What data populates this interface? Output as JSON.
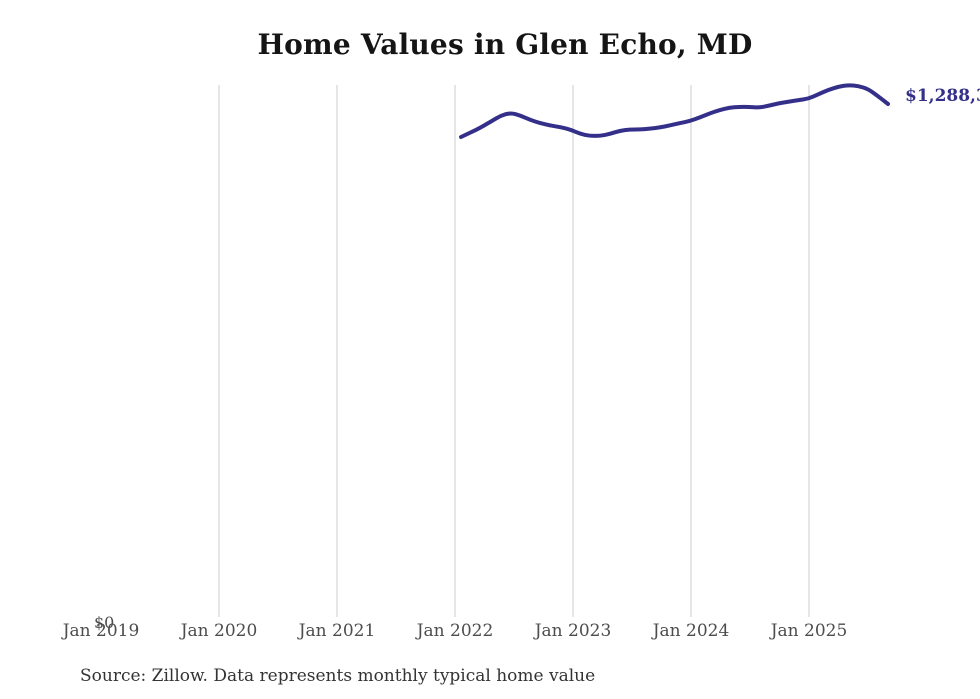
{
  "title": "Home Values in Glen Echo, MD",
  "source_note": "Source: Zillow. Data represents monthly typical home value",
  "latest_value_label": "$1,288,3",
  "y_axis": {
    "zero_label": "$0"
  },
  "x_axis": {
    "ticks": [
      {
        "label": "Jan 2019",
        "gridline": false
      },
      {
        "label": "Jan 2020",
        "gridline": true
      },
      {
        "label": "Jan 2021",
        "gridline": true
      },
      {
        "label": "Jan 2022",
        "gridline": true
      },
      {
        "label": "Jan 2023",
        "gridline": true
      },
      {
        "label": "Jan 2024",
        "gridline": true
      },
      {
        "label": "Jan 2025",
        "gridline": true
      }
    ]
  },
  "colors": {
    "line": "#34308a",
    "annotation": "#34308a",
    "grid": "#cccccc",
    "axis_text": "#4d4d4d",
    "title_text": "#151515",
    "source_text": "#333333",
    "background": "#ffffff"
  },
  "chart_data": {
    "type": "line",
    "title": "Home Values in Glen Echo, MD",
    "xlabel": "",
    "ylabel": "",
    "ylim": [
      0,
      1340000
    ],
    "grid": "vertical-only",
    "legend": "none",
    "series_name": "Monthly typical home value (ZHVI)",
    "end_value": 1288300,
    "x": [
      "Feb 2022",
      "Mar 2022",
      "Apr 2022",
      "May 2022",
      "Jun 2022",
      "Jul 2022",
      "Aug 2022",
      "Sep 2022",
      "Oct 2022",
      "Nov 2022",
      "Dec 2022",
      "Jan 2023",
      "Feb 2023",
      "Mar 2023",
      "Apr 2023",
      "May 2023",
      "Jun 2023",
      "Jul 2023",
      "Aug 2023",
      "Sep 2023",
      "Oct 2023",
      "Nov 2023",
      "Dec 2023",
      "Jan 2024",
      "Feb 2024",
      "Mar 2024",
      "Apr 2024",
      "May 2024",
      "Jun 2024",
      "Jul 2024",
      "Aug 2024",
      "Sep 2024",
      "Oct 2024",
      "Nov 2024",
      "Dec 2024",
      "Jan 2025",
      "Feb 2025",
      "Mar 2025",
      "Apr 2025",
      "May 2025",
      "Jun 2025",
      "Jul 2025",
      "Aug 2025",
      "Sep 2025"
    ],
    "values": [
      1205000,
      1217000,
      1229000,
      1244000,
      1259000,
      1266000,
      1259000,
      1248000,
      1240000,
      1234000,
      1230000,
      1224000,
      1213000,
      1208000,
      1208000,
      1213000,
      1221000,
      1224000,
      1224000,
      1226000,
      1229000,
      1234000,
      1240000,
      1245000,
      1254000,
      1264000,
      1273000,
      1279000,
      1281000,
      1281000,
      1279000,
      1284000,
      1290000,
      1294000,
      1298000,
      1302000,
      1313000,
      1324000,
      1332000,
      1336000,
      1334000,
      1326000,
      1308000,
      1288300
    ]
  }
}
